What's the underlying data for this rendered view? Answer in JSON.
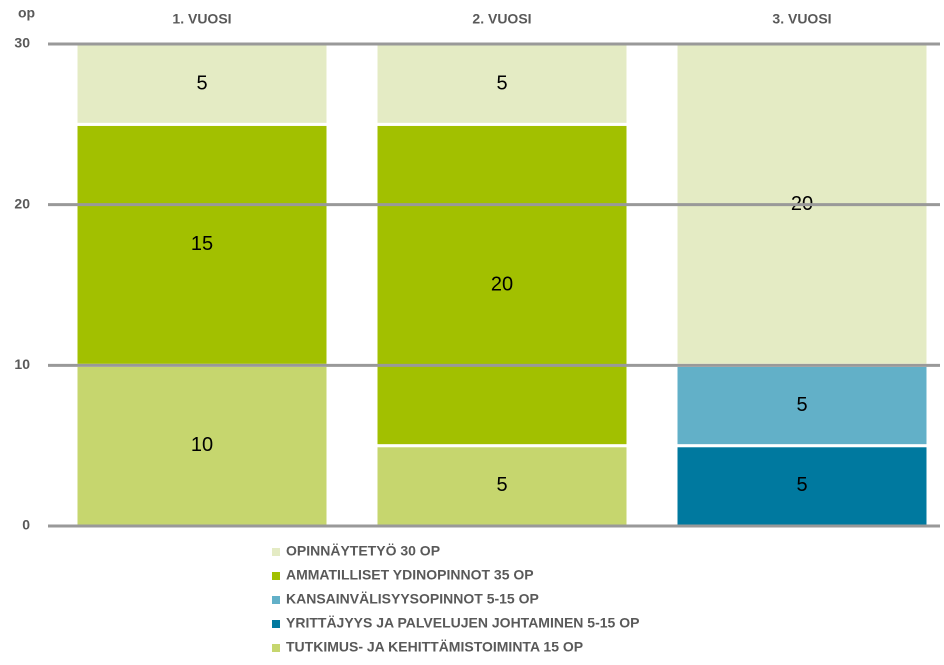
{
  "chart_data": {
    "type": "stacked_bar",
    "y_label": "op",
    "categories": [
      "1. VUOSI",
      "2. VUOSI",
      "3. VUOSI"
    ],
    "series": [
      {
        "name": "TUTKIMUS- JA KEHITTÄMISTOIMINTA 15 OP",
        "color": "#c6d66e",
        "values": [
          10,
          5,
          null
        ]
      },
      {
        "name": "YRITTÄJYYS JA PALVELUJEN JOHTAMINEN 5-15 OP",
        "color": "#00799f",
        "values": [
          null,
          null,
          5
        ]
      },
      {
        "name": "KANSAINVÄLISYYSOPINNOT 5-15 OP",
        "color": "#62b0c8",
        "values": [
          null,
          null,
          5
        ]
      },
      {
        "name": "AMMATILLISET YDINOPINNOT 35 OP",
        "color": "#a2c000",
        "values": [
          15,
          20,
          null
        ]
      },
      {
        "name": "OPINNÄYTETYÖ 30 OP",
        "color": "#e4ebc4",
        "values": [
          5,
          5,
          20
        ]
      }
    ],
    "ylim": [
      0,
      30
    ],
    "yticks": [
      0,
      10,
      20,
      30
    ],
    "grid": true,
    "legend": "bottom"
  }
}
